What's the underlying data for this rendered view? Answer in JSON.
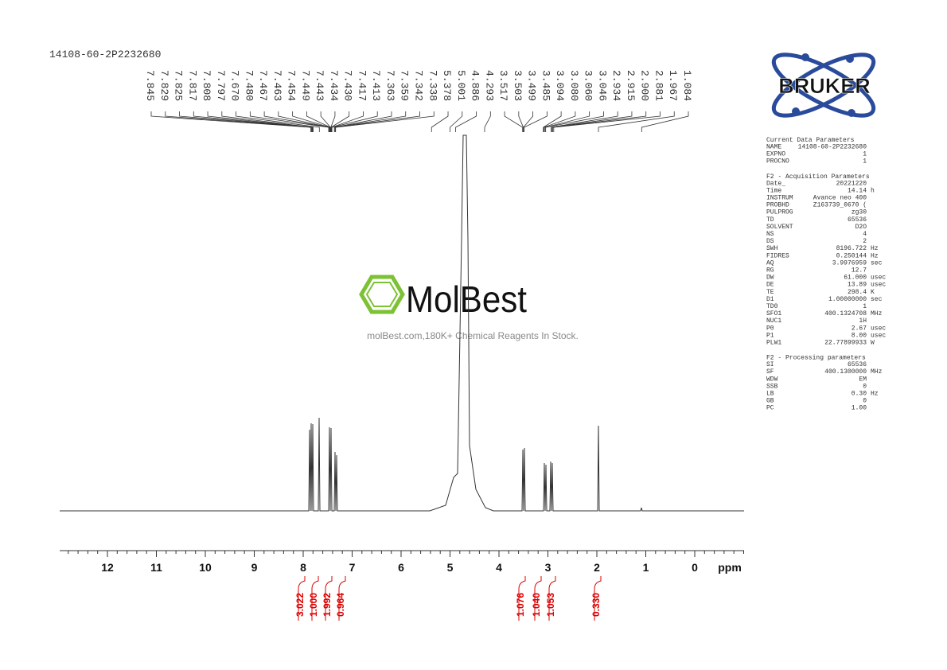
{
  "sample_id": "14108-60-2P2232680",
  "peak_labels": [
    "7.845",
    "7.829",
    "7.825",
    "7.817",
    "7.808",
    "7.797",
    "7.670",
    "7.480",
    "7.467",
    "7.463",
    "7.454",
    "7.449",
    "7.443",
    "7.434",
    "7.430",
    "7.417",
    "7.413",
    "7.363",
    "7.359",
    "7.342",
    "7.338",
    "5.378",
    "5.001",
    "4.886",
    "4.293",
    "3.517",
    "3.503",
    "3.499",
    "3.485",
    "3.094",
    "3.080",
    "3.060",
    "3.046",
    "2.934",
    "2.915",
    "2.900",
    "2.881",
    "1.967",
    "1.084"
  ],
  "axis": {
    "ticks": [
      12,
      11,
      10,
      9,
      8,
      7,
      6,
      5,
      4,
      3,
      2,
      1,
      0
    ],
    "unit": "ppm"
  },
  "integrals": [
    "3.022",
    "1.000",
    "1.992",
    "0.964",
    "1.076",
    "1.040",
    "1.053",
    "0.330"
  ],
  "watermark": {
    "brand": "MolBest",
    "tagline": "molBest.com,180K+ Chemical Reagents In Stock."
  },
  "logo": "BRUKER",
  "parameters": [
    {
      "title": "Current Data Parameters",
      "rows": [
        [
          "NAME",
          "14108-60-2P2232680"
        ],
        [
          "EXPNO",
          "1"
        ],
        [
          "PROCNO",
          "1"
        ]
      ]
    },
    {
      "title": "F2 - Acquisition Parameters",
      "rows": [
        [
          "Date_",
          "20221220"
        ],
        [
          "Time",
          "14.14",
          "h"
        ],
        [
          "INSTRUM",
          "Avance neo 400"
        ],
        [
          "PROBHD",
          "Z163739_0670 ("
        ],
        [
          "PULPROG",
          "zg30"
        ],
        [
          "TD",
          "65536"
        ],
        [
          "SOLVENT",
          "D2O"
        ],
        [
          "NS",
          "4"
        ],
        [
          "DS",
          "2"
        ],
        [
          "SWH",
          "8196.722",
          "Hz"
        ],
        [
          "FIDRES",
          "0.250144",
          "Hz"
        ],
        [
          "AQ",
          "3.9976959",
          "sec"
        ],
        [
          "RG",
          "12.7"
        ],
        [
          "DW",
          "61.000",
          "usec"
        ],
        [
          "DE",
          "13.89",
          "usec"
        ],
        [
          "TE",
          "298.4",
          "K"
        ],
        [
          "D1",
          "1.00000000",
          "sec"
        ],
        [
          "TD0",
          "1"
        ],
        [
          "SFO1",
          "400.1324708",
          "MHz"
        ],
        [
          "NUC1",
          "1H"
        ],
        [
          "P0",
          "2.67",
          "usec"
        ],
        [
          "P1",
          "8.00",
          "usec"
        ],
        [
          "PLW1",
          "22.77899933",
          "W"
        ]
      ]
    },
    {
      "title": "F2 - Processing parameters",
      "rows": [
        [
          "SI",
          "65536"
        ],
        [
          "SF",
          "400.1300000",
          "MHz"
        ],
        [
          "WDW",
          "EM"
        ],
        [
          "SSB",
          "0"
        ],
        [
          "LB",
          "0.30",
          "Hz"
        ],
        [
          "GB",
          "0"
        ],
        [
          "PC",
          "1.00"
        ]
      ]
    }
  ]
}
